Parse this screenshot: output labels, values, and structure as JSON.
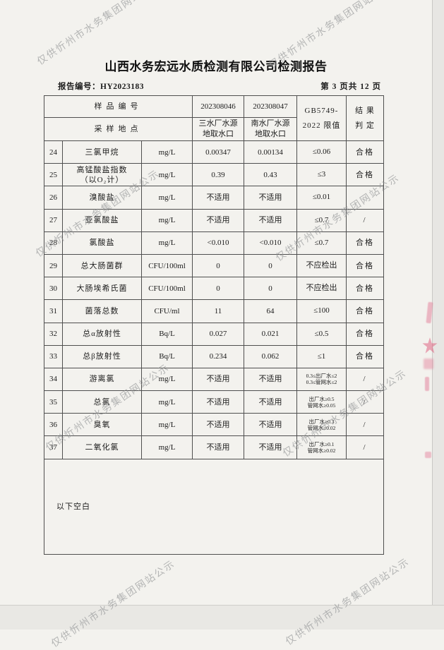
{
  "page": {
    "title": "山西水务宏远水质检测有限公司检测报告",
    "report_no": "报告编号：HY2023183",
    "page_indicator": "第 3 页共 12 页"
  },
  "watermark": {
    "text": "仅供忻州市水务集团网站公示",
    "color": "#8e9092"
  },
  "artifacts": {
    "stamp_bleed_color": "#e06c8c"
  },
  "table": {
    "header": {
      "sample_no_label": "样品编号",
      "site_label": "采样地点",
      "sample1_no": "202308046",
      "sample2_no": "202308047",
      "sample1_site_line1": "三水厂水源",
      "sample1_site_line2": "地取水口",
      "sample2_site_line1": "南水厂水源",
      "sample2_site_line2": "地取水口",
      "limit_line1": "GB5749-",
      "limit_line2": "2022 限值",
      "result_line1": "结 果",
      "result_line2": "判 定"
    },
    "rows": [
      {
        "no": "24",
        "name": "三氯甲烷",
        "name2": "",
        "unit": "mg/L",
        "v1": "0.00347",
        "v2": "0.00134",
        "limit": "≤0.06",
        "limit2": "",
        "result": "合格"
      },
      {
        "no": "25",
        "name": "高锰酸盐指数",
        "name2": "（以O₂计）",
        "unit": "mg/L",
        "v1": "0.39",
        "v2": "0.43",
        "limit": "≤3",
        "limit2": "",
        "result": "合格"
      },
      {
        "no": "26",
        "name": "溴酸盐",
        "name2": "",
        "unit": "mg/L",
        "v1": "不适用",
        "v2": "不适用",
        "limit": "≤0.01",
        "limit2": "",
        "result": ""
      },
      {
        "no": "27",
        "name": "亚氯酸盐",
        "name2": "",
        "unit": "mg/L",
        "v1": "不适用",
        "v2": "不适用",
        "limit": "≤0.7",
        "limit2": "",
        "result": "/"
      },
      {
        "no": "28",
        "name": "氯酸盐",
        "name2": "",
        "unit": "mg/L",
        "v1": "<0.010",
        "v2": "<0.010",
        "limit": "≤0.7",
        "limit2": "",
        "result": "合格"
      },
      {
        "no": "29",
        "name": "总大肠菌群",
        "name2": "",
        "unit": "CFU/100ml",
        "v1": "0",
        "v2": "0",
        "limit": "不应检出",
        "limit2": "",
        "result": "合格"
      },
      {
        "no": "30",
        "name": "大肠埃希氏菌",
        "name2": "",
        "unit": "CFU/100ml",
        "v1": "0",
        "v2": "0",
        "limit": "不应检出",
        "limit2": "",
        "result": "合格"
      },
      {
        "no": "31",
        "name": "菌落总数",
        "name2": "",
        "unit": "CFU/ml",
        "v1": "11",
        "v2": "64",
        "limit": "≤100",
        "limit2": "",
        "result": "合格"
      },
      {
        "no": "32",
        "name": "总α放射性",
        "name2": "",
        "unit": "Bq/L",
        "v1": "0.027",
        "v2": "0.021",
        "limit": "≤0.5",
        "limit2": "",
        "result": "合格"
      },
      {
        "no": "33",
        "name": "总β放射性",
        "name2": "",
        "unit": "Bq/L",
        "v1": "0.234",
        "v2": "0.062",
        "limit": "≤1",
        "limit2": "",
        "result": "合格"
      },
      {
        "no": "34",
        "name": "游离氯",
        "name2": "",
        "unit": "mg/L",
        "v1": "不适用",
        "v2": "不适用",
        "limit": "0.3≤出厂水≤2",
        "limit2": "0.3≤管网水≤2",
        "result": "/"
      },
      {
        "no": "35",
        "name": "总氯",
        "name2": "",
        "unit": "mg/L",
        "v1": "不适用",
        "v2": "不适用",
        "limit": "出厂水≥0.5",
        "limit2": "管网水≥0.05",
        "result": "/"
      },
      {
        "no": "36",
        "name": "臭氧",
        "name2": "",
        "unit": "mg/L",
        "v1": "不适用",
        "v2": "不适用",
        "limit": "出厂水≥0.3",
        "limit2": "管网水≥0.02",
        "result": "/"
      },
      {
        "no": "37",
        "name": "二氧化氯",
        "name2": "",
        "unit": "mg/L",
        "v1": "不适用",
        "v2": "不适用",
        "limit": "出厂水≥0.1",
        "limit2": "管网水≥0.02",
        "result": "/"
      }
    ],
    "footer_note": "以下空白"
  }
}
